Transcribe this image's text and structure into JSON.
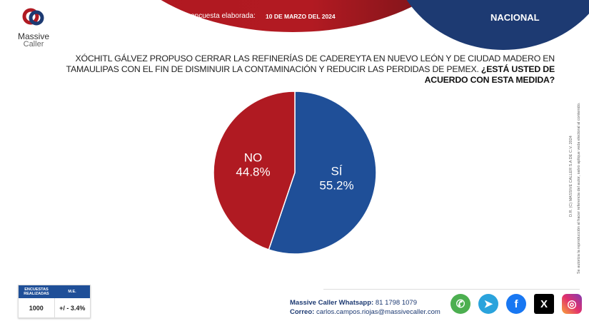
{
  "header": {
    "survey_label": "Última encuesta elaborada:",
    "survey_date": "10 DE MARZO DEL 2024",
    "scope": "NACIONAL"
  },
  "logo": {
    "line1": "Massive",
    "line2": "Caller"
  },
  "question": {
    "text": "XÓCHITL GÁLVEZ PROPUSO CERRAR LAS REFINERÍAS DE CADEREYTA EN NUEVO LEÓN Y DE CIUDAD MADERO EN TAMAULIPAS CON EL FIN DE DISMINUIR LA CONTAMINACIÓN Y REDUCIR LAS PERDIDAS DE PEMEX. ",
    "emphasis": "¿ESTÁ USTED DE ACUERDO CON ESTA MEDIDA?"
  },
  "chart_data": {
    "type": "pie",
    "title": "",
    "categories": [
      "SÍ",
      "NO"
    ],
    "values": [
      55.2,
      44.8
    ],
    "labels": [
      "55.2%",
      "44.8%"
    ],
    "colors": [
      "#1f4f98",
      "#b01a22"
    ]
  },
  "legal": {
    "line1": "D.R. (C) MASSIVE CALLER S.A DE C.V. 2024",
    "line2": "Se autoriza la reproducción al hacer referencia del autor, salvo aplique veda electoral al contenido."
  },
  "stats": {
    "col1": "ENCUESTAS REALIZADAS",
    "col2": "M.E.",
    "val1": "1000",
    "val2": "+/ - 3.4%"
  },
  "contact": {
    "whatsapp_label": "Massive Caller Whatsapp:",
    "whatsapp": "81 1798 1079",
    "email_label": "Correo:",
    "email": "carlos.campos.riojas@massivecaller.com"
  },
  "social": [
    "whatsapp",
    "telegram",
    "facebook",
    "x",
    "instagram"
  ]
}
